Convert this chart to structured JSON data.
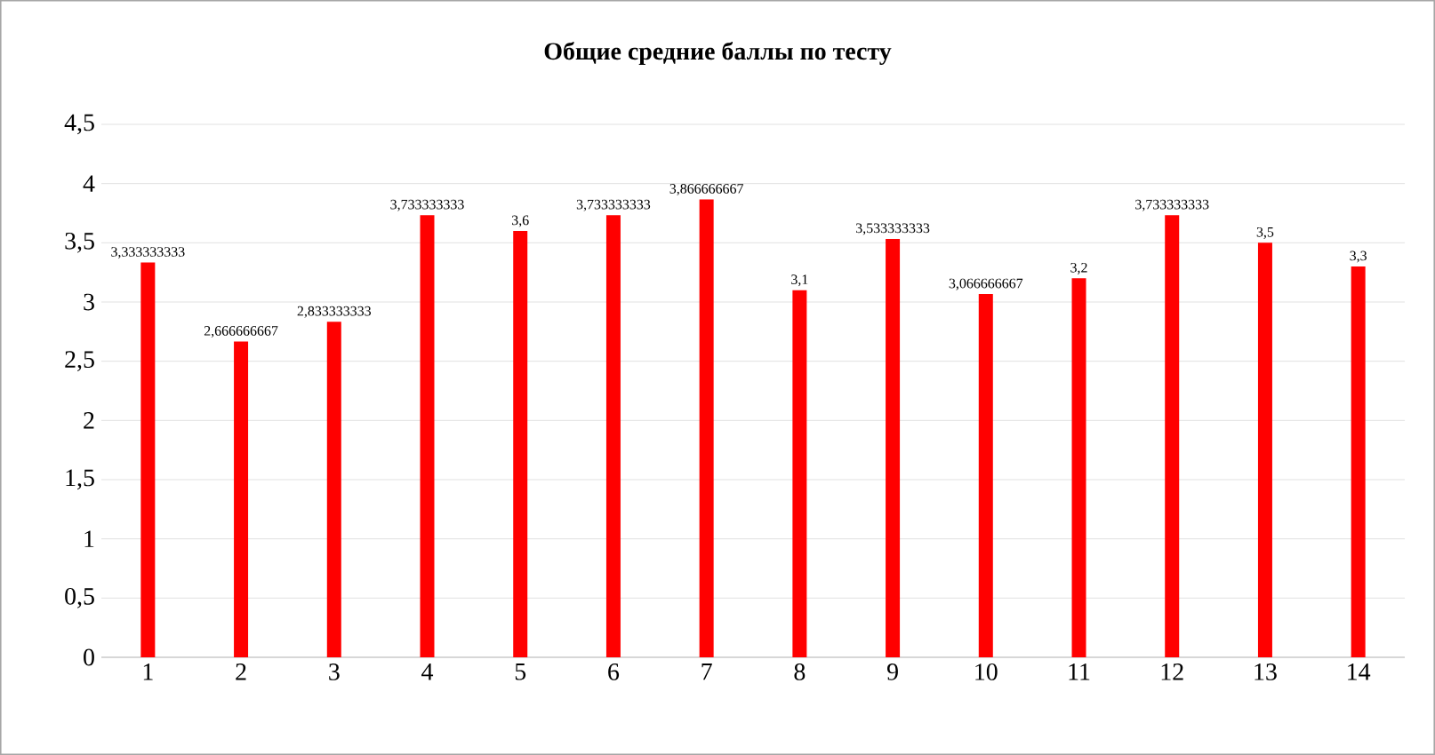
{
  "chart_data": {
    "type": "bar",
    "title": "Общие средние баллы по тесту",
    "categories": [
      "1",
      "2",
      "3",
      "4",
      "5",
      "6",
      "7",
      "8",
      "9",
      "10",
      "11",
      "12",
      "13",
      "14"
    ],
    "values": [
      3.333333333,
      2.666666667,
      2.833333333,
      3.733333333,
      3.6,
      3.733333333,
      3.866666667,
      3.1,
      3.533333333,
      3.066666667,
      3.2,
      3.733333333,
      3.5,
      3.3
    ],
    "value_labels": [
      "3,333333333",
      "2,666666667",
      "2,833333333",
      "3,733333333",
      "3,6",
      "3,733333333",
      "3,866666667",
      "3,1",
      "3,533333333",
      "3,066666667",
      "3,2",
      "3,733333333",
      "3,5",
      "3,3"
    ],
    "color": "#ff0000",
    "ylim": [
      0,
      4.5
    ],
    "yticks": [
      0,
      {
        "value": 0.5,
        "label": "0,5"
      },
      1,
      {
        "value": 1.5,
        "label": "1,5"
      },
      2,
      {
        "value": 2.5,
        "label": "2,5"
      },
      3,
      {
        "value": 3.5,
        "label": "3,5"
      },
      4,
      {
        "value": 4.5,
        "label": "4,5"
      }
    ],
    "grid": "y"
  }
}
